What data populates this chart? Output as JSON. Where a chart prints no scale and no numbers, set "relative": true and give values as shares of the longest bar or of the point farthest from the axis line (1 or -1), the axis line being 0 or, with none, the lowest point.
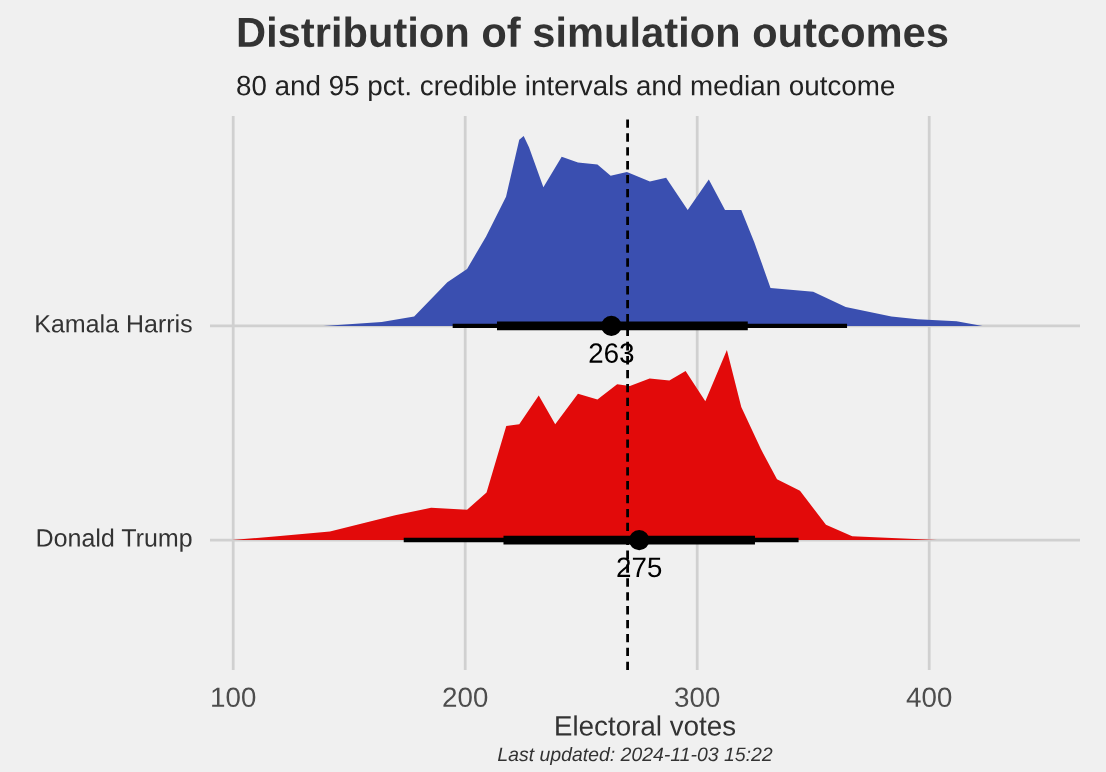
{
  "chart_data": [
    {
      "type": "area",
      "relative": true,
      "title": "Distribution of simulation outcomes",
      "subtitle": "80 and 95 pct. credible intervals and median outcome",
      "xlim": [
        90,
        465
      ],
      "xticks": [
        100,
        200,
        300,
        400
      ],
      "tick_labels": false,
      "grid": "x",
      "ref_lines": [
        {
          "axis": "x",
          "value": 270,
          "line_style": "dashed",
          "color": "#000000"
        }
      ],
      "series": [
        {
          "name": "Kamala Harris",
          "color": "#3a4fb0",
          "x": [
            138.8,
            164,
            178,
            192.3,
            200.8,
            209,
            217.6,
            223.3,
            225.2,
            227.5,
            233.7,
            241.6,
            248.6,
            257,
            262.7,
            269.7,
            279.6,
            286.6,
            295.9,
            305,
            312,
            319,
            324.6,
            331.6,
            350,
            364,
            383.7,
            395,
            411.8,
            423
          ],
          "values": [
            0,
            0.02,
            0.05,
            0.23,
            0.3,
            0.47,
            0.68,
            0.98,
            1,
            0.94,
            0.73,
            0.89,
            0.86,
            0.85,
            0.79,
            0.81,
            0.76,
            0.78,
            0.61,
            0.77,
            0.61,
            0.61,
            0.44,
            0.2,
            0.18,
            0.1,
            0.05,
            0.035,
            0.024,
            0
          ]
        },
        {
          "type": "line",
          "color": "#000000",
          "x": [
            194.6,
            364.6
          ],
          "values": [
            0,
            0
          ]
        },
        {
          "type": "line",
          "color": "#000000",
          "x": [
            213.7,
            321.8
          ],
          "values": [
            0,
            0
          ]
        },
        {
          "type": "scatter",
          "color": "#000000",
          "x": [
            263
          ],
          "values": [
            0
          ]
        }
      ],
      "annotations": [
        {
          "text": "263",
          "x": 263,
          "y": 0
        }
      ]
    },
    {
      "type": "area",
      "relative": true,
      "xlabel": "Electoral votes",
      "xlim": [
        90,
        465
      ],
      "xticks": [
        100,
        200,
        300,
        400
      ],
      "tick_labels": "x",
      "grid": "x",
      "ref_lines": [
        {
          "axis": "x",
          "value": 270,
          "line_style": "dashed",
          "color": "#000000"
        }
      ],
      "series": [
        {
          "name": "Donald Trump",
          "color": "#e20a0a",
          "x": [
            99.4,
            119,
            141.7,
            169.8,
            185.3,
            200.8,
            209.2,
            217.7,
            223.3,
            231.7,
            238.8,
            248.6,
            257,
            265.5,
            271,
            279.5,
            288,
            295,
            303.5,
            312.8,
            319,
            327.4,
            334.4,
            344.3,
            355.5,
            366.8,
            403.4
          ],
          "values": [
            0,
            0.02,
            0.045,
            0.13,
            0.17,
            0.16,
            0.25,
            0.6,
            0.61,
            0.76,
            0.61,
            0.77,
            0.74,
            0.82,
            0.81,
            0.85,
            0.84,
            0.89,
            0.73,
            1,
            0.7,
            0.48,
            0.32,
            0.26,
            0.08,
            0.02,
            0
          ]
        },
        {
          "type": "line",
          "color": "#000000",
          "x": [
            173.5,
            343.7
          ],
          "values": [
            0,
            0
          ]
        },
        {
          "type": "line",
          "color": "#000000",
          "x": [
            216.5,
            324.9
          ],
          "values": [
            0,
            0
          ]
        },
        {
          "type": "scatter",
          "color": "#000000",
          "x": [
            275
          ],
          "values": [
            0
          ]
        }
      ],
      "annotations": [
        {
          "text": "275",
          "x": 275,
          "y": 0
        },
        "Last updated: 2024-11-03 15:22"
      ]
    }
  ]
}
